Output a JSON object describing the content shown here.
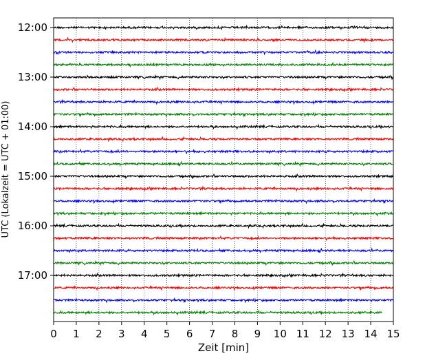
{
  "chart_data": {
    "type": "line",
    "title": "",
    "xlabel": "Zeit  [min]",
    "ylabel": "UTC (Lokalzeit = UTC + 01:00)",
    "xlim": [
      0,
      15
    ],
    "x_ticks": [
      "0",
      "1",
      "2",
      "3",
      "4",
      "5",
      "6",
      "7",
      "8",
      "9",
      "10",
      "11",
      "12",
      "13",
      "14",
      "15"
    ],
    "y_ticks": [
      "12:00",
      "13:00",
      "14:00",
      "15:00",
      "16:00",
      "17:00"
    ],
    "grid": "vertical dotted at each minute",
    "trace_interval_minutes": 15,
    "colors": [
      "#000000",
      "#ff0000",
      "#0000ff",
      "#008000"
    ],
    "traces": [
      {
        "start": "12:00",
        "color": "#000000"
      },
      {
        "start": "12:15",
        "color": "#ff0000"
      },
      {
        "start": "12:30",
        "color": "#0000ff"
      },
      {
        "start": "12:45",
        "color": "#008000"
      },
      {
        "start": "13:00",
        "color": "#000000"
      },
      {
        "start": "13:15",
        "color": "#ff0000"
      },
      {
        "start": "13:30",
        "color": "#0000ff"
      },
      {
        "start": "13:45",
        "color": "#008000"
      },
      {
        "start": "14:00",
        "color": "#000000"
      },
      {
        "start": "14:15",
        "color": "#ff0000"
      },
      {
        "start": "14:30",
        "color": "#0000ff"
      },
      {
        "start": "14:45",
        "color": "#008000"
      },
      {
        "start": "15:00",
        "color": "#000000"
      },
      {
        "start": "15:15",
        "color": "#ff0000"
      },
      {
        "start": "15:30",
        "color": "#0000ff"
      },
      {
        "start": "15:45",
        "color": "#008000"
      },
      {
        "start": "16:00",
        "color": "#000000"
      },
      {
        "start": "16:15",
        "color": "#ff0000"
      },
      {
        "start": "16:30",
        "color": "#0000ff"
      },
      {
        "start": "16:45",
        "color": "#008000"
      },
      {
        "start": "17:00",
        "color": "#000000"
      },
      {
        "start": "17:15",
        "color": "#ff0000"
      },
      {
        "start": "17:30",
        "color": "#0000ff"
      },
      {
        "start": "17:45",
        "color": "#008000",
        "end_minute": 14.5
      }
    ]
  }
}
